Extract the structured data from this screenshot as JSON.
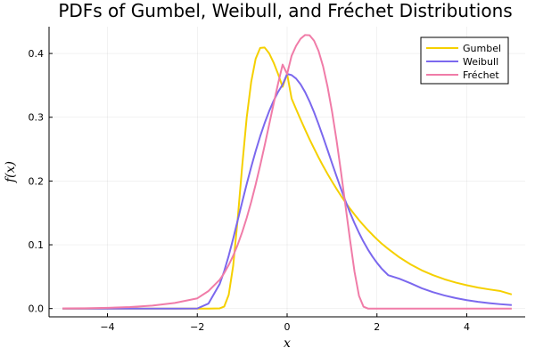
{
  "chart_data": {
    "type": "line",
    "title": "PDFs of Gumbel, Weibull, and Fréchet Distributions",
    "xlabel": "x",
    "ylabel": "f(x)",
    "xlim": [
      -5.3,
      5.3
    ],
    "ylim": [
      -0.013,
      0.442
    ],
    "xticks": [
      -4,
      -2,
      0,
      2,
      4
    ],
    "xtick_labels": [
      "−4",
      "−2",
      "0",
      "2",
      "4"
    ],
    "yticks": [
      0.0,
      0.1,
      0.2,
      0.3,
      0.4
    ],
    "ytick_labels": [
      "0.0",
      "0.1",
      "0.2",
      "0.3",
      "0.4"
    ],
    "grid": true,
    "legend_position": "top-right",
    "x": [
      -5,
      -4.5,
      -4,
      -3.5,
      -3,
      -2.5,
      -2,
      -1.75,
      -1.5,
      -1.4,
      -1.3,
      -1.2,
      -1.1,
      -1,
      -0.9,
      -0.8,
      -0.7,
      -0.6,
      -0.5,
      -0.4,
      -0.3,
      -0.2,
      -0.1,
      0,
      0.1,
      0.2,
      0.3,
      0.4,
      0.5,
      0.6,
      0.7,
      0.8,
      0.9,
      1,
      1.1,
      1.2,
      1.3,
      1.4,
      1.5,
      1.6,
      1.7,
      1.8,
      1.9,
      2,
      2.1,
      2.25,
      2.5,
      2.75,
      3,
      3.25,
      3.5,
      3.75,
      4,
      4.25,
      4.5,
      4.75,
      5
    ],
    "series": [
      {
        "name": "Gumbel",
        "color": "#f5d000",
        "values": [
          0,
          0,
          0,
          0,
          0,
          0,
          0,
          0,
          0.0003,
          0.0032,
          0.0215,
          0.0675,
          0.1407,
          0.2236,
          0.2993,
          0.3553,
          0.3918,
          0.4087,
          0.4093,
          0.4003,
          0.3856,
          0.3676,
          0.3477,
          0.3679,
          0.3293,
          0.3127,
          0.2965,
          0.2807,
          0.2654,
          0.2511,
          0.237,
          0.2237,
          0.2111,
          0.1991,
          0.1877,
          0.1768,
          0.1665,
          0.1567,
          0.1475,
          0.1388,
          0.1306,
          0.1229,
          0.1156,
          0.1087,
          0.1022,
          0.0935,
          0.0803,
          0.0692,
          0.0599,
          0.0523,
          0.046,
          0.0408,
          0.0365,
          0.0329,
          0.03,
          0.0274,
          0.0222
        ]
      },
      {
        "name": "Weibull",
        "color": "#7b68ee",
        "values": [
          0,
          0,
          0,
          0,
          0,
          0,
          0.0001,
          0.0079,
          0.0387,
          0.0588,
          0.0829,
          0.1099,
          0.1384,
          0.167,
          0.1951,
          0.2219,
          0.2469,
          0.27,
          0.2909,
          0.3095,
          0.3259,
          0.3398,
          0.3513,
          0.3679,
          0.3661,
          0.3606,
          0.3516,
          0.3395,
          0.3247,
          0.3078,
          0.2891,
          0.2692,
          0.2487,
          0.2279,
          0.2074,
          0.1875,
          0.1684,
          0.1505,
          0.1339,
          0.1187,
          0.1049,
          0.0925,
          0.0815,
          0.0717,
          0.063,
          0.0524,
          0.0467,
          0.0396,
          0.0318,
          0.0256,
          0.0206,
          0.0165,
          0.0132,
          0.0105,
          0.0085,
          0.0068,
          0.0055
        ]
      },
      {
        "name": "Fréchet",
        "color": "#f07ca8",
        "values": [
          0.0002,
          0.0005,
          0.0011,
          0.0024,
          0.0047,
          0.0088,
          0.016,
          0.0275,
          0.0452,
          0.0557,
          0.0683,
          0.083,
          0.1001,
          0.1198,
          0.1421,
          0.1671,
          0.1946,
          0.2243,
          0.2558,
          0.2885,
          0.3213,
          0.3532,
          0.3826,
          0.3679,
          0.3964,
          0.412,
          0.4232,
          0.429,
          0.4285,
          0.42,
          0.404,
          0.38,
          0.348,
          0.309,
          0.264,
          0.214,
          0.161,
          0.108,
          0.058,
          0.02,
          0.003,
          0,
          0,
          0,
          0,
          0,
          0,
          0,
          0,
          0,
          0,
          0,
          0,
          0,
          0,
          0,
          0
        ]
      }
    ]
  }
}
